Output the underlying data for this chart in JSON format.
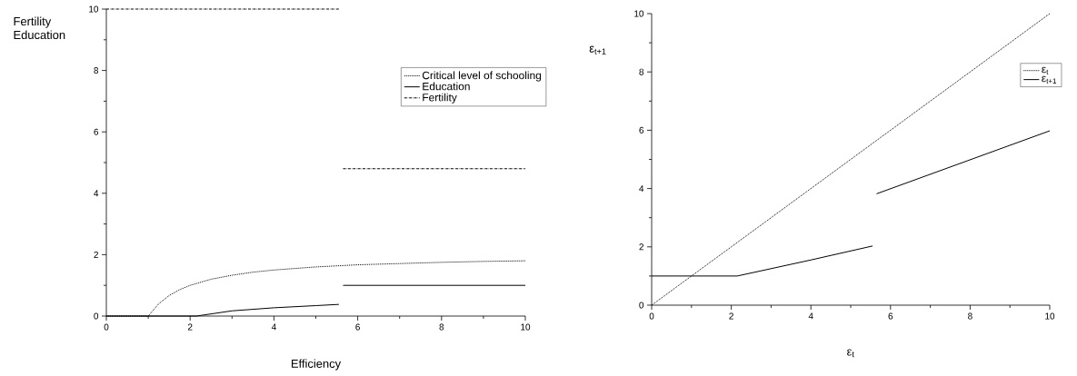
{
  "chart_data": [
    {
      "type": "line",
      "xlabel": "Efficiency",
      "ylabel": "Fertility Education",
      "xlim": [
        0,
        10
      ],
      "ylim": [
        0,
        10
      ],
      "xticks": [
        0,
        2,
        4,
        6,
        8,
        10
      ],
      "yticks": [
        0,
        2,
        4,
        6,
        8,
        10
      ],
      "legend": "top right",
      "series": [
        {
          "name": "Critical level of schooling",
          "color": "#000000",
          "line_style": "dotted",
          "x": [
            0,
            1,
            1.25,
            1.5,
            1.75,
            2,
            2.5,
            3,
            3.5,
            4,
            5,
            6,
            7,
            8,
            9,
            10
          ],
          "values": [
            0,
            0,
            0.4,
            0.67,
            0.86,
            1.0,
            1.2,
            1.33,
            1.43,
            1.5,
            1.6,
            1.67,
            1.71,
            1.75,
            1.78,
            1.8
          ]
        },
        {
          "name": "Education",
          "color": "#000000",
          "line_style": "solid",
          "x": [
            0,
            2.15,
            3,
            4,
            5,
            5.55,
            5.6,
            5.65,
            10
          ],
          "values": [
            0,
            0,
            0.17,
            0.27,
            0.34,
            0.38,
            null,
            1,
            1
          ]
        },
        {
          "name": "Fertility",
          "color": "#000000",
          "line_style": "dashdot",
          "x": [
            0,
            5.55,
            5.6,
            5.65,
            10
          ],
          "values": [
            10,
            10,
            null,
            4.8,
            4.8
          ]
        }
      ]
    },
    {
      "type": "line",
      "xlabel": "ε$_{t}$",
      "ylabel": "ε$_{t+1}$",
      "xlim": [
        0,
        10
      ],
      "ylim": [
        0,
        10
      ],
      "xticks": [
        0,
        2,
        4,
        6,
        8,
        10
      ],
      "yticks": [
        0,
        2,
        4,
        6,
        8,
        10
      ],
      "legend": "top right",
      "series": [
        {
          "name": "ε$_{t}$",
          "color": "#000000",
          "line_style": "dotted",
          "x": [
            0,
            10
          ],
          "values": [
            0,
            10
          ]
        },
        {
          "name": "ε$_{t+1}$",
          "color": "#000000",
          "line_style": "solid",
          "x": [
            0,
            2.15,
            4,
            5.55,
            5.6,
            5.65,
            10
          ],
          "values": [
            1,
            1,
            1.55,
            2.03,
            null,
            3.82,
            5.98
          ]
        }
      ]
    }
  ]
}
